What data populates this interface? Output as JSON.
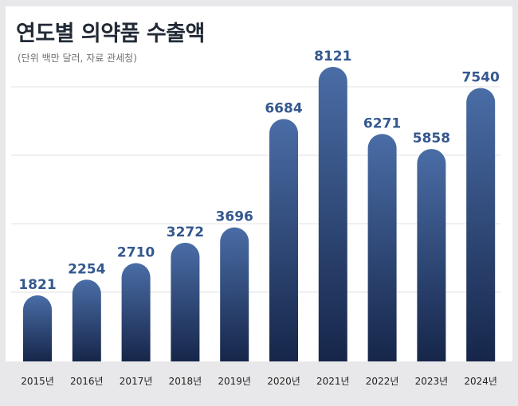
{
  "page": {
    "title": "연도별 의약품 수출액",
    "subtitle": "(단위 백만 달러, 자료 관세청)"
  },
  "colors": {
    "bar_top": "#4a6da6",
    "bar_bottom": "#16264a",
    "value_label": "#34588f",
    "grid": "#e2e2e2",
    "card": "#ffffff",
    "background": "#e8e8ea"
  },
  "chart_data": {
    "type": "bar",
    "title": "연도별 의약품 수출액",
    "subtitle": "(단위 백만 달러, 자료 관세청)",
    "categories": [
      "2015년",
      "2016년",
      "2017년",
      "2018년",
      "2019년",
      "2020년",
      "2021년",
      "2022년",
      "2023년",
      "2024년"
    ],
    "values": [
      1821,
      2254,
      2710,
      3272,
      3696,
      6684,
      8121,
      6271,
      5858,
      7540
    ],
    "ylim": [
      0,
      8500
    ],
    "grid": true,
    "legend": "none",
    "data_labels": true
  }
}
